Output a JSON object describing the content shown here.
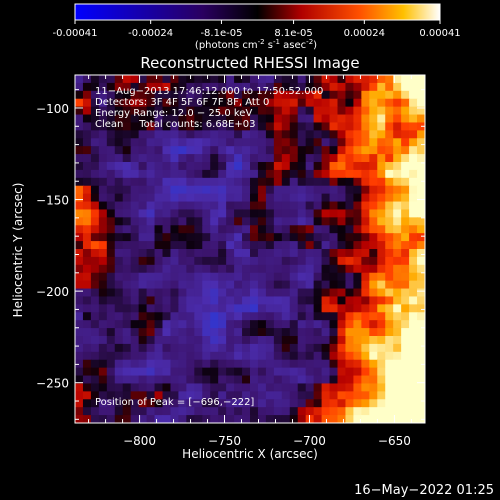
{
  "colorbar": {
    "ticks": [
      "-0.00041",
      "-0.00024",
      "-8.1e-05",
      "8.1e-05",
      "0.00024",
      "0.00041"
    ],
    "tick_values": [
      -0.00041,
      -0.00024,
      -8.1e-05,
      8.1e-05,
      0.00024,
      0.00041
    ],
    "range": [
      -0.00041,
      0.00041
    ],
    "units_main": "(photons cm",
    "units_exp1": "-2",
    "units_mid": " s",
    "units_exp2": "-1",
    "units_end": " asec",
    "units_exp3": "-2",
    "units_close": ")"
  },
  "chart_data": {
    "type": "heatmap",
    "title": "Reconstructed RHESSI Image",
    "xlabel": "Heliocentric X (arcsec)",
    "ylabel": "Heliocentric Y (arcsec)",
    "xlim": [
      -838,
      -632
    ],
    "ylim": [
      -272,
      -82
    ],
    "x_ticks": [
      -800,
      -750,
      -700,
      -650
    ],
    "y_ticks": [
      -100,
      -150,
      -200,
      -250
    ],
    "x_tick_labels": [
      "−800",
      "−750",
      "−700",
      "−650"
    ],
    "y_tick_labels": [
      "−100",
      "−150",
      "−200",
      "−250"
    ],
    "peak_position": [
      -696,
      -222
    ],
    "colors": [
      "#0000ff",
      "#6b2fb8",
      "#000000",
      "#d10000",
      "#ff8c00",
      "#ffffff"
    ]
  },
  "overlay": {
    "line1": "11−Aug−2013 17:46:12.000 to 17:50:52.000",
    "line2": "Detectors: 3F 4F 5F 6F 7F 8F, Att 0",
    "line3": "Energy Range: 12.0 − 25.0 keV",
    "line4": "Clean     Total counts: 6.68E+03",
    "peak": "Position of Peak = [−696,−222]"
  },
  "footer": {
    "timestamp": "16−May−2022 01:25"
  }
}
